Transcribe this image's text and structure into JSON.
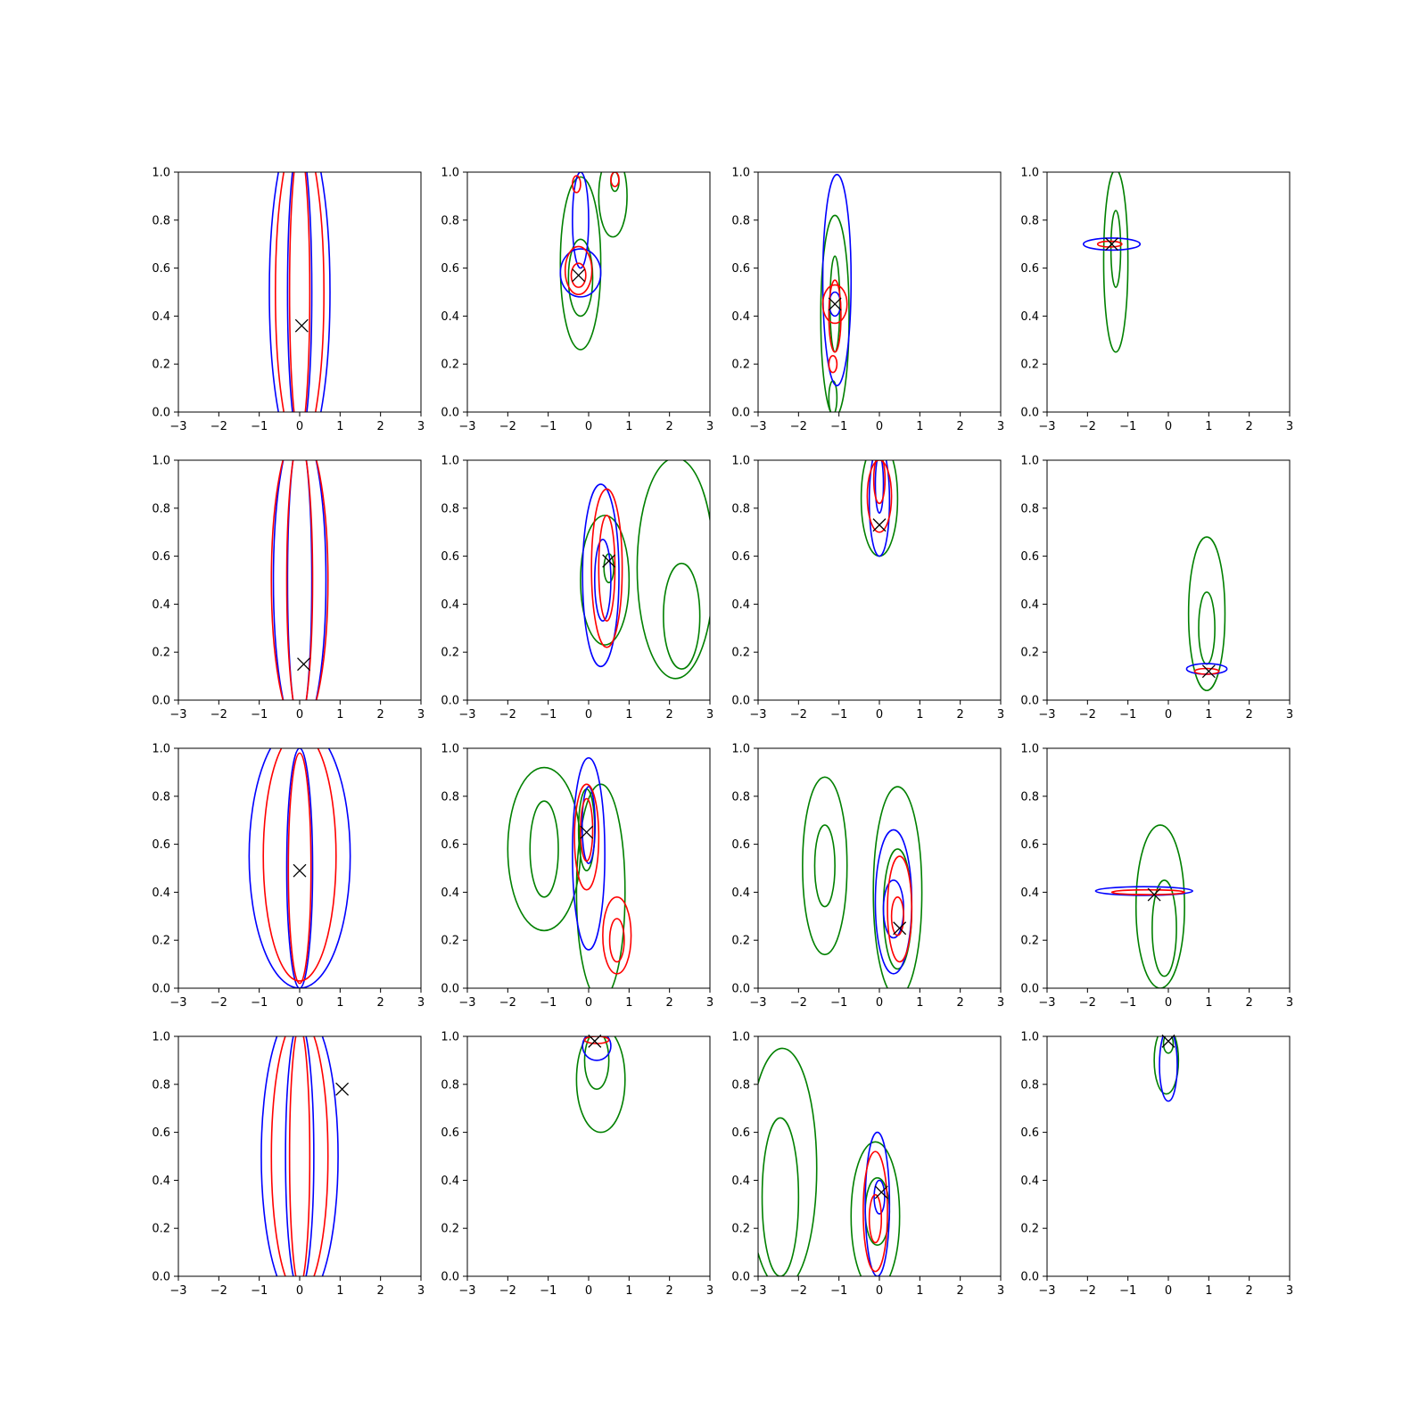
{
  "figure": {
    "grid": "4x4",
    "colors": {
      "blue": "#0000ff",
      "red": "#ff0000",
      "green": "#008000",
      "marker": "#000000"
    }
  },
  "chart_data": {
    "type": "contour",
    "xlim": [
      -3,
      3
    ],
    "ylim": [
      0.0,
      1.0
    ],
    "xticks": [
      -3,
      -2,
      -1,
      0,
      1,
      2,
      3
    ],
    "yticks": [
      0.0,
      0.2,
      0.4,
      0.6,
      0.8,
      1.0
    ],
    "xtick_labels": [
      "−3",
      "−2",
      "−1",
      "0",
      "1",
      "2",
      "3"
    ],
    "ytick_labels": [
      "0.0",
      "0.2",
      "0.4",
      "0.6",
      "0.8",
      "1.0"
    ],
    "grid": false,
    "panels": [
      {
        "row": 0,
        "col": 0,
        "marker": [
          0.05,
          0.36
        ],
        "contours": [
          {
            "color": "blue",
            "cx": 0.0,
            "cy": 0.5,
            "rx": 0.75,
            "ry": 0.7
          },
          {
            "color": "blue",
            "cx": 0.0,
            "cy": 0.5,
            "rx": 0.3,
            "ry": 0.62
          },
          {
            "color": "red",
            "cx": 0.0,
            "cy": 0.5,
            "rx": 0.6,
            "ry": 0.66
          },
          {
            "color": "red",
            "cx": 0.0,
            "cy": 0.5,
            "rx": 0.25,
            "ry": 0.6
          }
        ]
      },
      {
        "row": 0,
        "col": 1,
        "marker": [
          -0.25,
          0.57
        ],
        "contours": [
          {
            "color": "green",
            "cx": -0.2,
            "cy": 0.62,
            "rx": 0.5,
            "ry": 0.36
          },
          {
            "color": "green",
            "cx": -0.2,
            "cy": 0.56,
            "rx": 0.3,
            "ry": 0.16
          },
          {
            "color": "green",
            "cx": 0.6,
            "cy": 0.9,
            "rx": 0.35,
            "ry": 0.17
          },
          {
            "color": "green",
            "cx": 0.65,
            "cy": 0.96,
            "rx": 0.1,
            "ry": 0.04
          },
          {
            "color": "blue",
            "cx": -0.2,
            "cy": 0.58,
            "rx": 0.5,
            "ry": 0.1
          },
          {
            "color": "blue",
            "cx": -0.2,
            "cy": 0.8,
            "rx": 0.2,
            "ry": 0.2
          },
          {
            "color": "red",
            "cx": -0.25,
            "cy": 0.59,
            "rx": 0.33,
            "ry": 0.1
          },
          {
            "color": "red",
            "cx": -0.25,
            "cy": 0.57,
            "rx": 0.18,
            "ry": 0.05
          },
          {
            "color": "red",
            "cx": -0.3,
            "cy": 0.95,
            "rx": 0.1,
            "ry": 0.035
          },
          {
            "color": "red",
            "cx": 0.65,
            "cy": 0.97,
            "rx": 0.1,
            "ry": 0.03
          }
        ]
      },
      {
        "row": 0,
        "col": 2,
        "marker": [
          -1.1,
          0.45
        ],
        "contours": [
          {
            "color": "green",
            "cx": -1.1,
            "cy": 0.4,
            "rx": 0.35,
            "ry": 0.42
          },
          {
            "color": "green",
            "cx": -1.15,
            "cy": 0.06,
            "rx": 0.1,
            "ry": 0.07
          },
          {
            "color": "green",
            "cx": -1.1,
            "cy": 0.45,
            "rx": 0.12,
            "ry": 0.2
          },
          {
            "color": "blue",
            "cx": -1.05,
            "cy": 0.55,
            "rx": 0.35,
            "ry": 0.44
          },
          {
            "color": "blue",
            "cx": -1.1,
            "cy": 0.45,
            "rx": 0.14,
            "ry": 0.05
          },
          {
            "color": "red",
            "cx": -1.1,
            "cy": 0.45,
            "rx": 0.3,
            "ry": 0.08
          },
          {
            "color": "red",
            "cx": -1.1,
            "cy": 0.4,
            "rx": 0.15,
            "ry": 0.15
          },
          {
            "color": "red",
            "cx": -1.15,
            "cy": 0.2,
            "rx": 0.1,
            "ry": 0.035
          }
        ]
      },
      {
        "row": 0,
        "col": 3,
        "marker": [
          -1.4,
          0.7
        ],
        "contours": [
          {
            "color": "green",
            "cx": -1.3,
            "cy": 0.63,
            "rx": 0.3,
            "ry": 0.38
          },
          {
            "color": "green",
            "cx": -1.3,
            "cy": 0.68,
            "rx": 0.12,
            "ry": 0.16
          },
          {
            "color": "blue",
            "cx": -1.4,
            "cy": 0.7,
            "rx": 0.7,
            "ry": 0.025
          },
          {
            "color": "red",
            "cx": -1.45,
            "cy": 0.7,
            "rx": 0.3,
            "ry": 0.012
          }
        ]
      },
      {
        "row": 1,
        "col": 0,
        "marker": [
          0.1,
          0.15
        ],
        "contours": [
          {
            "color": "blue",
            "cx": 0.0,
            "cy": 0.5,
            "rx": 0.65,
            "ry": 0.64
          },
          {
            "color": "blue",
            "cx": 0.0,
            "cy": 0.5,
            "rx": 0.3,
            "ry": 0.6
          },
          {
            "color": "red",
            "cx": 0.0,
            "cy": 0.5,
            "rx": 0.7,
            "ry": 0.62
          },
          {
            "color": "red",
            "cx": 0.0,
            "cy": 0.5,
            "rx": 0.32,
            "ry": 0.58
          }
        ]
      },
      {
        "row": 1,
        "col": 1,
        "marker": [
          0.5,
          0.58
        ],
        "contours": [
          {
            "color": "green",
            "cx": 0.4,
            "cy": 0.5,
            "rx": 0.6,
            "ry": 0.27
          },
          {
            "color": "green",
            "cx": 0.5,
            "cy": 0.55,
            "rx": 0.12,
            "ry": 0.06
          },
          {
            "color": "green",
            "cx": 2.15,
            "cy": 0.55,
            "rx": 0.95,
            "ry": 0.46
          },
          {
            "color": "green",
            "cx": 2.3,
            "cy": 0.35,
            "rx": 0.45,
            "ry": 0.22
          },
          {
            "color": "blue",
            "cx": 0.3,
            "cy": 0.52,
            "rx": 0.45,
            "ry": 0.38
          },
          {
            "color": "blue",
            "cx": 0.35,
            "cy": 0.5,
            "rx": 0.2,
            "ry": 0.17
          },
          {
            "color": "red",
            "cx": 0.45,
            "cy": 0.55,
            "rx": 0.38,
            "ry": 0.33
          },
          {
            "color": "red",
            "cx": 0.45,
            "cy": 0.55,
            "rx": 0.2,
            "ry": 0.22
          }
        ]
      },
      {
        "row": 1,
        "col": 2,
        "marker": [
          0.0,
          0.73
        ],
        "contours": [
          {
            "color": "green",
            "cx": 0.0,
            "cy": 0.84,
            "rx": 0.45,
            "ry": 0.24
          },
          {
            "color": "blue",
            "cx": 0.0,
            "cy": 0.83,
            "rx": 0.25,
            "ry": 0.23
          },
          {
            "color": "blue",
            "cx": 0.0,
            "cy": 0.9,
            "rx": 0.1,
            "ry": 0.12
          },
          {
            "color": "red",
            "cx": 0.0,
            "cy": 0.85,
            "rx": 0.3,
            "ry": 0.15
          },
          {
            "color": "red",
            "cx": 0.0,
            "cy": 0.92,
            "rx": 0.14,
            "ry": 0.1
          }
        ]
      },
      {
        "row": 1,
        "col": 3,
        "marker": [
          1.0,
          0.12
        ],
        "contours": [
          {
            "color": "green",
            "cx": 0.95,
            "cy": 0.36,
            "rx": 0.45,
            "ry": 0.32
          },
          {
            "color": "green",
            "cx": 0.95,
            "cy": 0.3,
            "rx": 0.2,
            "ry": 0.15
          },
          {
            "color": "blue",
            "cx": 0.95,
            "cy": 0.13,
            "rx": 0.5,
            "ry": 0.022
          },
          {
            "color": "red",
            "cx": 0.95,
            "cy": 0.12,
            "rx": 0.3,
            "ry": 0.012
          }
        ]
      },
      {
        "row": 2,
        "col": 0,
        "marker": [
          0.0,
          0.49
        ],
        "contours": [
          {
            "color": "blue",
            "cx": 0.0,
            "cy": 0.55,
            "rx": 1.25,
            "ry": 0.55
          },
          {
            "color": "blue",
            "cx": 0.0,
            "cy": 0.5,
            "rx": 0.32,
            "ry": 0.5
          },
          {
            "color": "red",
            "cx": 0.0,
            "cy": 0.55,
            "rx": 0.9,
            "ry": 0.52
          },
          {
            "color": "red",
            "cx": 0.0,
            "cy": 0.5,
            "rx": 0.28,
            "ry": 0.48
          }
        ]
      },
      {
        "row": 2,
        "col": 1,
        "marker": [
          -0.05,
          0.65
        ],
        "contours": [
          {
            "color": "green",
            "cx": -1.1,
            "cy": 0.58,
            "rx": 0.9,
            "ry": 0.34
          },
          {
            "color": "green",
            "cx": -1.1,
            "cy": 0.58,
            "rx": 0.35,
            "ry": 0.2
          },
          {
            "color": "green",
            "cx": 0.3,
            "cy": 0.4,
            "rx": 0.6,
            "ry": 0.45
          },
          {
            "color": "green",
            "cx": -0.05,
            "cy": 0.66,
            "rx": 0.2,
            "ry": 0.17
          },
          {
            "color": "blue",
            "cx": 0.0,
            "cy": 0.56,
            "rx": 0.4,
            "ry": 0.4
          },
          {
            "color": "blue",
            "cx": 0.0,
            "cy": 0.68,
            "rx": 0.16,
            "ry": 0.16
          },
          {
            "color": "red",
            "cx": -0.05,
            "cy": 0.63,
            "rx": 0.3,
            "ry": 0.22
          },
          {
            "color": "red",
            "cx": -0.05,
            "cy": 0.66,
            "rx": 0.15,
            "ry": 0.13
          },
          {
            "color": "red",
            "cx": 0.7,
            "cy": 0.22,
            "rx": 0.35,
            "ry": 0.16
          },
          {
            "color": "red",
            "cx": 0.7,
            "cy": 0.2,
            "rx": 0.18,
            "ry": 0.09
          }
        ]
      },
      {
        "row": 2,
        "col": 2,
        "marker": [
          0.5,
          0.25
        ],
        "contours": [
          {
            "color": "green",
            "cx": -1.35,
            "cy": 0.51,
            "rx": 0.55,
            "ry": 0.37
          },
          {
            "color": "green",
            "cx": -1.35,
            "cy": 0.51,
            "rx": 0.25,
            "ry": 0.17
          },
          {
            "color": "green",
            "cx": 0.45,
            "cy": 0.4,
            "rx": 0.6,
            "ry": 0.44
          },
          {
            "color": "green",
            "cx": 0.45,
            "cy": 0.33,
            "rx": 0.35,
            "ry": 0.25
          },
          {
            "color": "blue",
            "cx": 0.35,
            "cy": 0.36,
            "rx": 0.45,
            "ry": 0.3
          },
          {
            "color": "blue",
            "cx": 0.35,
            "cy": 0.33,
            "rx": 0.25,
            "ry": 0.12
          },
          {
            "color": "red",
            "cx": 0.5,
            "cy": 0.33,
            "rx": 0.3,
            "ry": 0.22
          },
          {
            "color": "red",
            "cx": 0.45,
            "cy": 0.3,
            "rx": 0.15,
            "ry": 0.08
          }
        ]
      },
      {
        "row": 2,
        "col": 3,
        "marker": [
          -0.35,
          0.39
        ],
        "contours": [
          {
            "color": "green",
            "cx": -0.2,
            "cy": 0.34,
            "rx": 0.6,
            "ry": 0.34
          },
          {
            "color": "green",
            "cx": -0.1,
            "cy": 0.25,
            "rx": 0.3,
            "ry": 0.2
          },
          {
            "color": "blue",
            "cx": -0.6,
            "cy": 0.405,
            "rx": 1.2,
            "ry": 0.018
          },
          {
            "color": "red",
            "cx": -0.5,
            "cy": 0.4,
            "rx": 0.9,
            "ry": 0.01
          }
        ]
      },
      {
        "row": 3,
        "col": 0,
        "marker": [
          1.05,
          0.78
        ],
        "contours": [
          {
            "color": "blue",
            "cx": 0.0,
            "cy": 0.5,
            "rx": 0.95,
            "ry": 0.62
          },
          {
            "color": "blue",
            "cx": 0.0,
            "cy": 0.5,
            "rx": 0.35,
            "ry": 0.56
          },
          {
            "color": "red",
            "cx": 0.0,
            "cy": 0.5,
            "rx": 0.7,
            "ry": 0.58
          },
          {
            "color": "red",
            "cx": 0.0,
            "cy": 0.5,
            "rx": 0.25,
            "ry": 0.54
          }
        ]
      },
      {
        "row": 3,
        "col": 1,
        "marker": [
          0.15,
          0.98
        ],
        "contours": [
          {
            "color": "green",
            "cx": 0.3,
            "cy": 0.82,
            "rx": 0.6,
            "ry": 0.22
          },
          {
            "color": "green",
            "cx": 0.2,
            "cy": 0.9,
            "rx": 0.3,
            "ry": 0.12
          },
          {
            "color": "blue",
            "cx": 0.2,
            "cy": 0.96,
            "rx": 0.35,
            "ry": 0.06
          },
          {
            "color": "red",
            "cx": 0.2,
            "cy": 0.985,
            "rx": 0.3,
            "ry": 0.015
          }
        ]
      },
      {
        "row": 3,
        "col": 2,
        "marker": [
          0.05,
          0.35
        ],
        "contours": [
          {
            "color": "green",
            "cx": -2.4,
            "cy": 0.45,
            "rx": 0.85,
            "ry": 0.5
          },
          {
            "color": "green",
            "cx": -2.45,
            "cy": 0.33,
            "rx": 0.45,
            "ry": 0.33
          },
          {
            "color": "green",
            "cx": -0.1,
            "cy": 0.25,
            "rx": 0.6,
            "ry": 0.31
          },
          {
            "color": "green",
            "cx": -0.05,
            "cy": 0.27,
            "rx": 0.3,
            "ry": 0.14
          },
          {
            "color": "blue",
            "cx": -0.05,
            "cy": 0.3,
            "rx": 0.3,
            "ry": 0.3
          },
          {
            "color": "blue",
            "cx": 0.0,
            "cy": 0.33,
            "rx": 0.13,
            "ry": 0.07
          },
          {
            "color": "red",
            "cx": -0.1,
            "cy": 0.27,
            "rx": 0.3,
            "ry": 0.25
          },
          {
            "color": "red",
            "cx": -0.1,
            "cy": 0.24,
            "rx": 0.15,
            "ry": 0.1
          }
        ]
      },
      {
        "row": 3,
        "col": 3,
        "marker": [
          0.0,
          0.98
        ],
        "contours": [
          {
            "color": "green",
            "cx": -0.05,
            "cy": 0.9,
            "rx": 0.3,
            "ry": 0.14
          },
          {
            "color": "green",
            "cx": 0.0,
            "cy": 0.97,
            "rx": 0.12,
            "ry": 0.04
          },
          {
            "color": "blue",
            "cx": 0.0,
            "cy": 0.88,
            "rx": 0.22,
            "ry": 0.15
          }
        ]
      }
    ]
  }
}
